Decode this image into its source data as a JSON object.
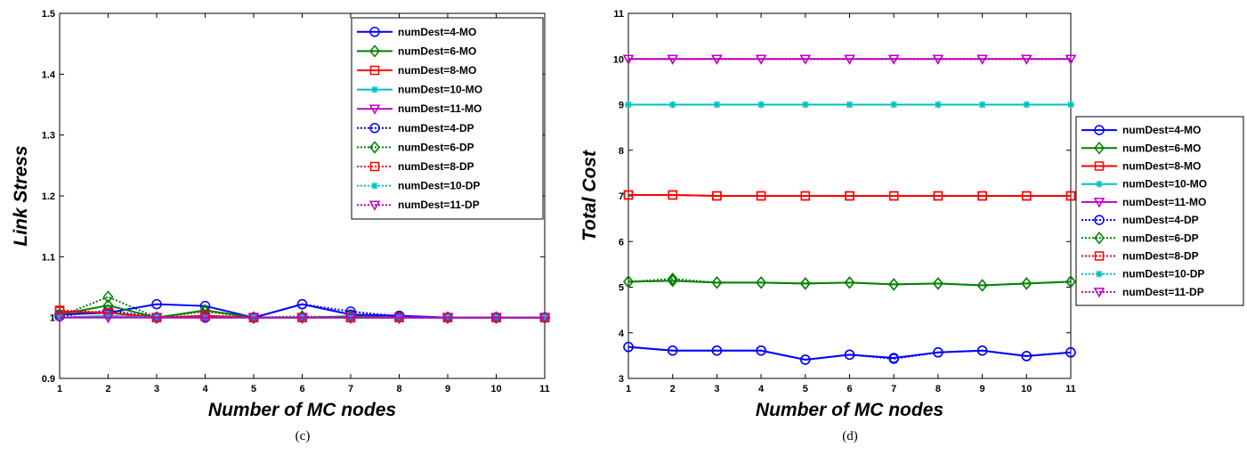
{
  "chart_data": [
    {
      "type": "line",
      "caption": "(c)",
      "xlabel": "Number of MC nodes",
      "ylabel": "Link Stress",
      "xlim": [
        1,
        11
      ],
      "ylim": [
        0.9,
        1.5
      ],
      "xticks": [
        1,
        2,
        3,
        4,
        5,
        6,
        7,
        8,
        9,
        10,
        11
      ],
      "yticks": [
        "0.9",
        "1",
        "1.1",
        "1.2",
        "1.3",
        "1.4",
        "1.5"
      ],
      "legend_position": "top-right",
      "x": [
        1,
        2,
        3,
        4,
        5,
        6,
        7,
        8,
        9,
        10,
        11
      ],
      "series": [
        {
          "name": "numDest=4-MO",
          "color": "#0000ff",
          "marker": "circle",
          "dash": false,
          "values": [
            1.005,
            1.008,
            1.022,
            1.019,
            1.0,
            1.022,
            1.005,
            1.003,
            1.0,
            1.0,
            1.0
          ]
        },
        {
          "name": "numDest=6-MO",
          "color": "#008000",
          "marker": "diamond",
          "dash": false,
          "values": [
            1.005,
            1.02,
            1.0,
            1.012,
            1.0,
            1.0,
            1.002,
            1.0,
            1.0,
            1.0,
            1.0
          ]
        },
        {
          "name": "numDest=8-MO",
          "color": "#ff0000",
          "marker": "square",
          "dash": false,
          "values": [
            1.01,
            1.008,
            1.0,
            1.003,
            1.0,
            1.0,
            1.0,
            1.0,
            1.0,
            1.0,
            1.0
          ]
        },
        {
          "name": "numDest=10-MO",
          "color": "#00bfbf",
          "marker": "star",
          "dash": false,
          "values": [
            1.0,
            1.003,
            1.0,
            1.0,
            1.0,
            1.0,
            1.0,
            1.0,
            1.0,
            1.0,
            1.0
          ]
        },
        {
          "name": "numDest=11-MO",
          "color": "#bf00bf",
          "marker": "triangle-down",
          "dash": false,
          "values": [
            1.0,
            1.0,
            1.0,
            1.0,
            1.0,
            1.0,
            1.0,
            1.0,
            1.0,
            1.0,
            1.0
          ]
        },
        {
          "name": "numDest=4-DP",
          "color": "#0000ff",
          "marker": "circle",
          "dash": true,
          "values": [
            1.002,
            1.012,
            1.0,
            1.0,
            1.0,
            1.022,
            1.01,
            1.002,
            1.0,
            1.0,
            1.0
          ]
        },
        {
          "name": "numDest=6-DP",
          "color": "#008000",
          "marker": "diamond",
          "dash": true,
          "values": [
            1.002,
            1.034,
            1.0,
            1.01,
            1.0,
            1.002,
            1.0,
            1.0,
            1.0,
            1.0,
            1.0
          ]
        },
        {
          "name": "numDest=8-DP",
          "color": "#ff0000",
          "marker": "square",
          "dash": true,
          "values": [
            1.012,
            1.008,
            1.0,
            1.002,
            1.0,
            1.0,
            1.0,
            1.0,
            1.0,
            1.0,
            1.0
          ]
        },
        {
          "name": "numDest=10-DP",
          "color": "#00bfbf",
          "marker": "star",
          "dash": true,
          "values": [
            1.0,
            1.002,
            1.0,
            1.0,
            1.0,
            1.0,
            1.0,
            1.0,
            1.0,
            1.0,
            1.0
          ]
        },
        {
          "name": "numDest=11-DP",
          "color": "#bf00bf",
          "marker": "triangle-down",
          "dash": true,
          "values": [
            1.0,
            1.0,
            1.0,
            1.0,
            1.0,
            1.0,
            1.0,
            1.0,
            1.0,
            1.0,
            1.0
          ]
        }
      ]
    },
    {
      "type": "line",
      "caption": "(d)",
      "xlabel": "Number of MC nodes",
      "ylabel": "Total Cost",
      "xlim": [
        1,
        11
      ],
      "ylim": [
        3,
        11
      ],
      "xticks": [
        1,
        2,
        3,
        4,
        5,
        6,
        7,
        8,
        9,
        10,
        11
      ],
      "yticks": [
        "3",
        "4",
        "5",
        "6",
        "7",
        "8",
        "9",
        "10",
        "11"
      ],
      "legend_position": "outside-right",
      "x": [
        1,
        2,
        3,
        4,
        5,
        6,
        7,
        8,
        9,
        10,
        11
      ],
      "series": [
        {
          "name": "numDest=4-MO",
          "color": "#0000ff",
          "marker": "circle",
          "dash": false,
          "values": [
            3.69,
            3.61,
            3.61,
            3.61,
            3.41,
            3.52,
            3.45,
            3.57,
            3.61,
            3.49,
            3.57
          ]
        },
        {
          "name": "numDest=6-MO",
          "color": "#008000",
          "marker": "diamond",
          "dash": false,
          "values": [
            5.12,
            5.14,
            5.1,
            5.1,
            5.08,
            5.1,
            5.06,
            5.08,
            5.04,
            5.08,
            5.12
          ]
        },
        {
          "name": "numDest=8-MO",
          "color": "#ff0000",
          "marker": "square",
          "dash": false,
          "values": [
            7.02,
            7.02,
            7.0,
            7.0,
            7.0,
            7.0,
            7.0,
            7.0,
            7.0,
            7.0,
            7.0
          ]
        },
        {
          "name": "numDest=10-MO",
          "color": "#00bfbf",
          "marker": "star",
          "dash": false,
          "values": [
            9.0,
            9.0,
            9.0,
            9.0,
            9.0,
            9.0,
            9.0,
            9.0,
            9.0,
            9.0,
            9.0
          ]
        },
        {
          "name": "numDest=11-MO",
          "color": "#bf00bf",
          "marker": "triangle-down",
          "dash": false,
          "values": [
            10.0,
            10.0,
            10.0,
            10.0,
            10.0,
            10.0,
            10.0,
            10.0,
            10.0,
            10.0,
            10.0
          ]
        },
        {
          "name": "numDest=4-DP",
          "color": "#0000ff",
          "marker": "circle",
          "dash": true,
          "values": [
            3.69,
            3.61,
            3.61,
            3.61,
            3.41,
            3.52,
            3.43,
            3.57,
            3.61,
            3.49,
            3.57
          ]
        },
        {
          "name": "numDest=6-DP",
          "color": "#008000",
          "marker": "diamond",
          "dash": true,
          "values": [
            5.12,
            5.18,
            5.1,
            5.1,
            5.08,
            5.1,
            5.06,
            5.08,
            5.04,
            5.08,
            5.12
          ]
        },
        {
          "name": "numDest=8-DP",
          "color": "#ff0000",
          "marker": "square",
          "dash": true,
          "values": [
            7.02,
            7.02,
            7.0,
            7.0,
            7.0,
            7.0,
            7.0,
            7.0,
            7.0,
            7.0,
            7.0
          ]
        },
        {
          "name": "numDest=10-DP",
          "color": "#00bfbf",
          "marker": "star",
          "dash": true,
          "values": [
            9.0,
            9.0,
            9.0,
            9.0,
            9.0,
            9.0,
            9.0,
            9.0,
            9.0,
            9.0,
            9.0
          ]
        },
        {
          "name": "numDest=11-DP",
          "color": "#bf00bf",
          "marker": "triangle-down",
          "dash": true,
          "values": [
            10.0,
            10.0,
            10.0,
            10.0,
            10.0,
            10.0,
            10.0,
            10.0,
            10.0,
            10.0,
            10.0
          ]
        }
      ]
    }
  ]
}
